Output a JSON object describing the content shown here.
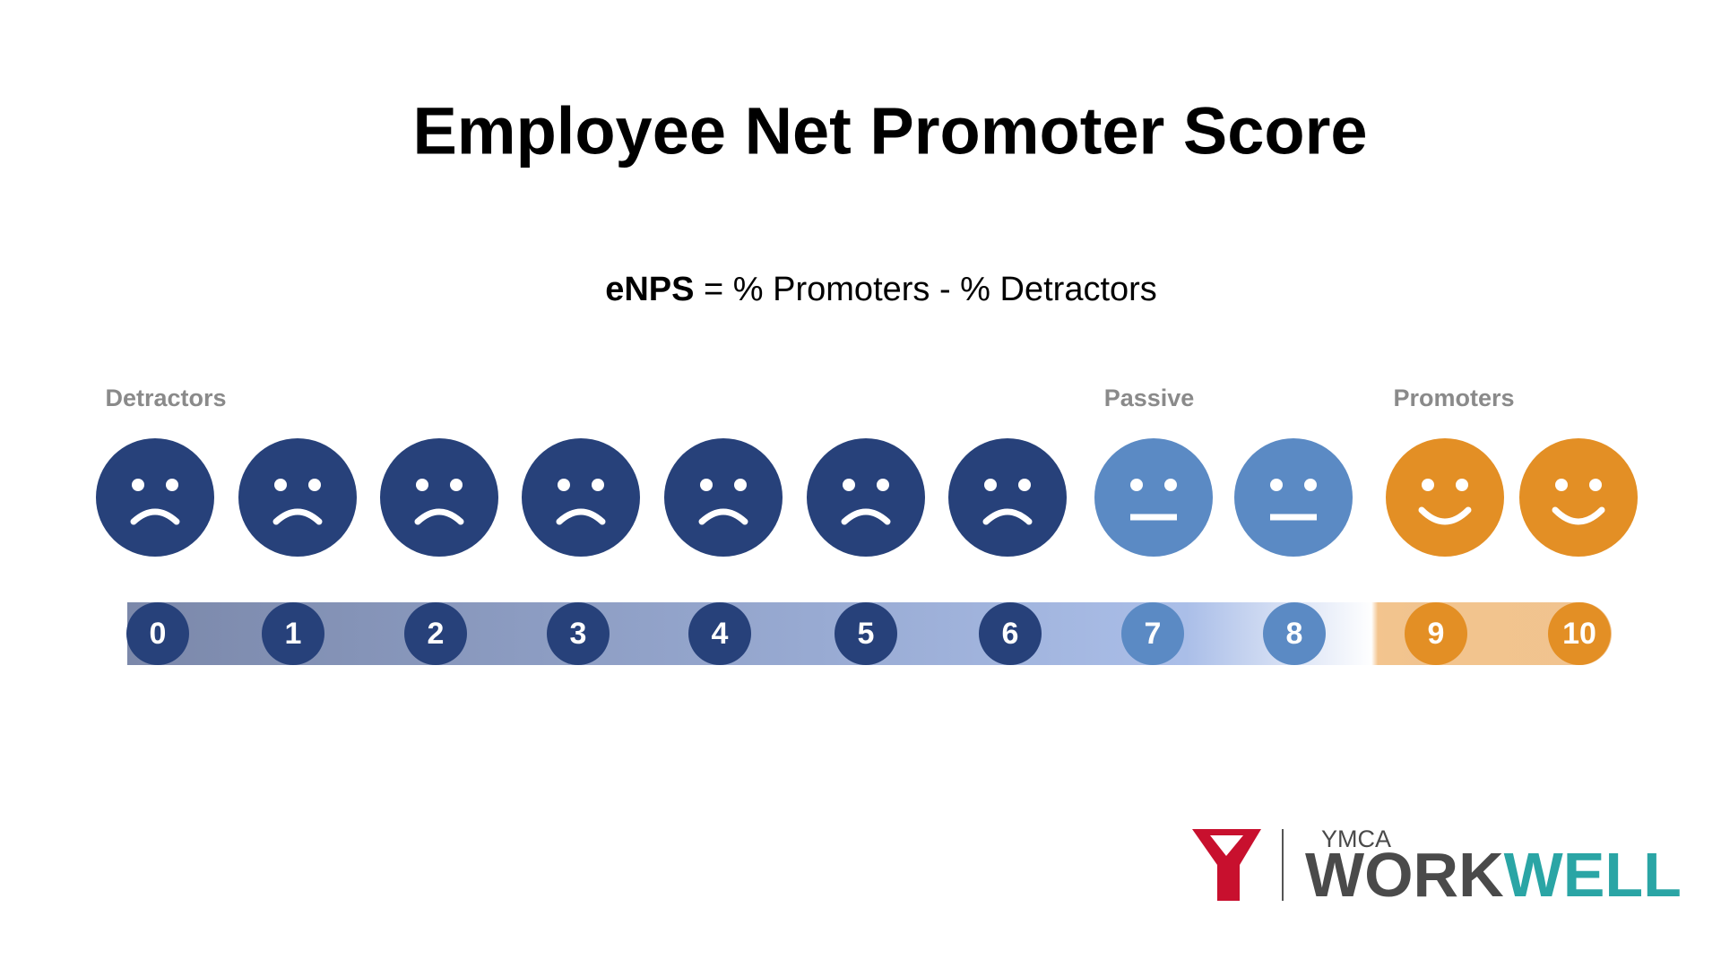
{
  "title": "Employee Net Promoter Score",
  "formula": {
    "term": "eNPS",
    "definition": "= % Promoters - % Detractors"
  },
  "groups": [
    {
      "label": "Detractors",
      "color": "#27417a",
      "scores": [
        0,
        1,
        2,
        3,
        4,
        5,
        6
      ]
    },
    {
      "label": "Passive",
      "color": "#5b8ac4",
      "scores": [
        7,
        8
      ]
    },
    {
      "label": "Promoters",
      "color": "#e38f25",
      "scores": [
        9,
        10
      ]
    }
  ],
  "logo": {
    "org": "YMCA",
    "word1": "WORK",
    "word2": "WELL"
  }
}
